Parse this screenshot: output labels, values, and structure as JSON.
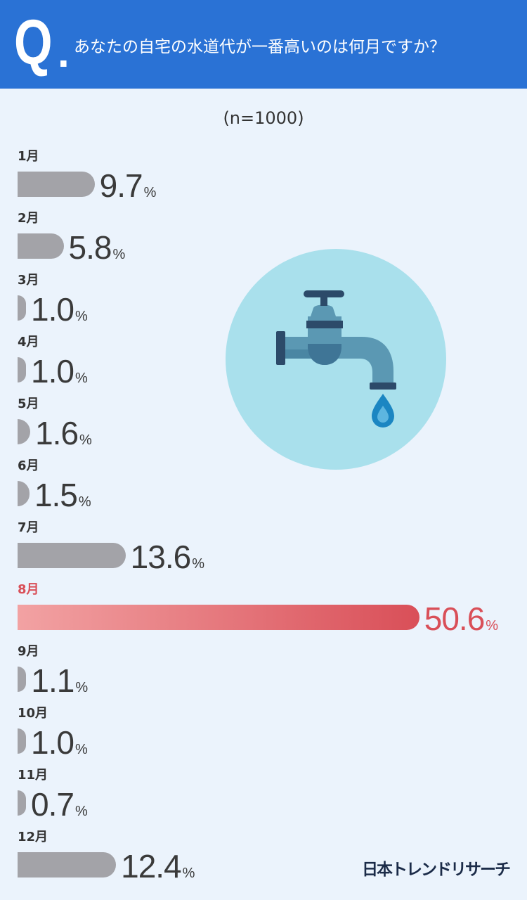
{
  "header": {
    "q_letter": "Q",
    "q_dot": "."
  },
  "chart_data": {
    "type": "bar",
    "orientation": "horizontal",
    "title": "あなたの自宅の水道代が一番高いのは何月ですか？",
    "subtitle": "(n=1000)",
    "categories": [
      "1月",
      "2月",
      "3月",
      "4月",
      "5月",
      "6月",
      "7月",
      "8月",
      "9月",
      "10月",
      "11月",
      "12月"
    ],
    "values": [
      9.7,
      5.8,
      1.0,
      1.0,
      1.6,
      1.5,
      13.6,
      50.6,
      1.1,
      1.0,
      0.7,
      12.4
    ],
    "unit": "%",
    "highlight": "8月",
    "colors": {
      "bar": "#a3a3a8",
      "highlight_start": "#f2a2a3",
      "highlight_end": "#d94f58",
      "value_text": "#3a3a3a",
      "highlight_text": "#d94f58"
    }
  },
  "illustration": {
    "icon": "faucet-icon",
    "drop_icon": "water-drop-icon"
  },
  "footer": {
    "brand": "日本トレンドリサーチ"
  },
  "theme": {
    "header_bg": "#2a72d5",
    "page_bg": "#ebf3fc",
    "circle": "#a9e0ec"
  }
}
